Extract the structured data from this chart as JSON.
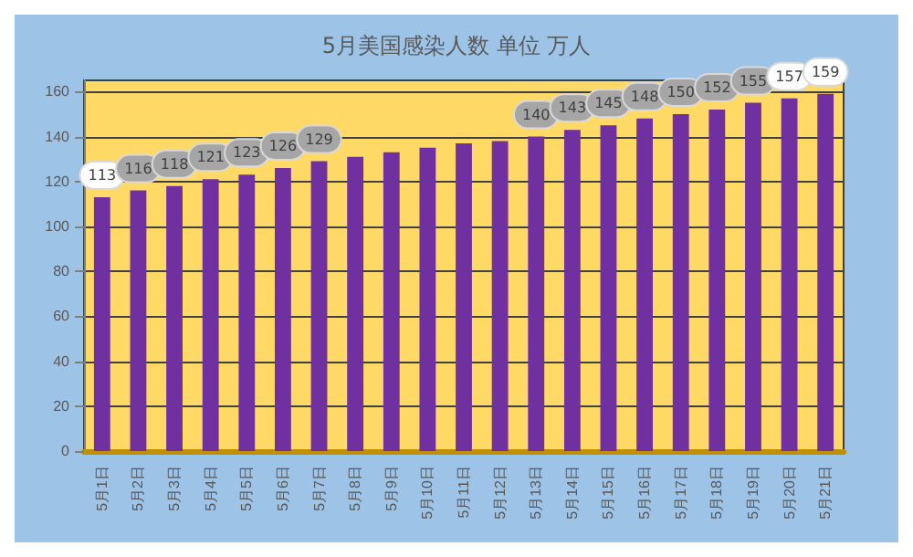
{
  "chart_data": {
    "type": "bar",
    "title": "5月美国感染人数 单位 万人",
    "categories": [
      "5月1日",
      "5月2日",
      "5月3日",
      "5月4日",
      "5月5日",
      "5月6日",
      "5月7日",
      "5月8日",
      "5月9日",
      "5月10日",
      "5月11日",
      "5月12日",
      "5月13日",
      "5月14日",
      "5月15日",
      "5月16日",
      "5月17日",
      "5月18日",
      "5月19日",
      "5月20日",
      "5月21日"
    ],
    "values": [
      113,
      116,
      118,
      121,
      123,
      126,
      129,
      131,
      133,
      135,
      137,
      138,
      140,
      143,
      145,
      148,
      150,
      152,
      155,
      157,
      159
    ],
    "value_labels": [
      "113",
      "116",
      "118",
      "121",
      "123",
      "126",
      "129",
      null,
      null,
      null,
      null,
      null,
      "140",
      "143",
      "145",
      "148",
      "150",
      "152",
      "155",
      "157",
      "159"
    ],
    "color": "#7030a0",
    "ylim": [
      0,
      165
    ],
    "yticks": [
      0,
      20,
      40,
      60,
      80,
      100,
      120,
      140,
      160
    ],
    "grid": "y"
  }
}
